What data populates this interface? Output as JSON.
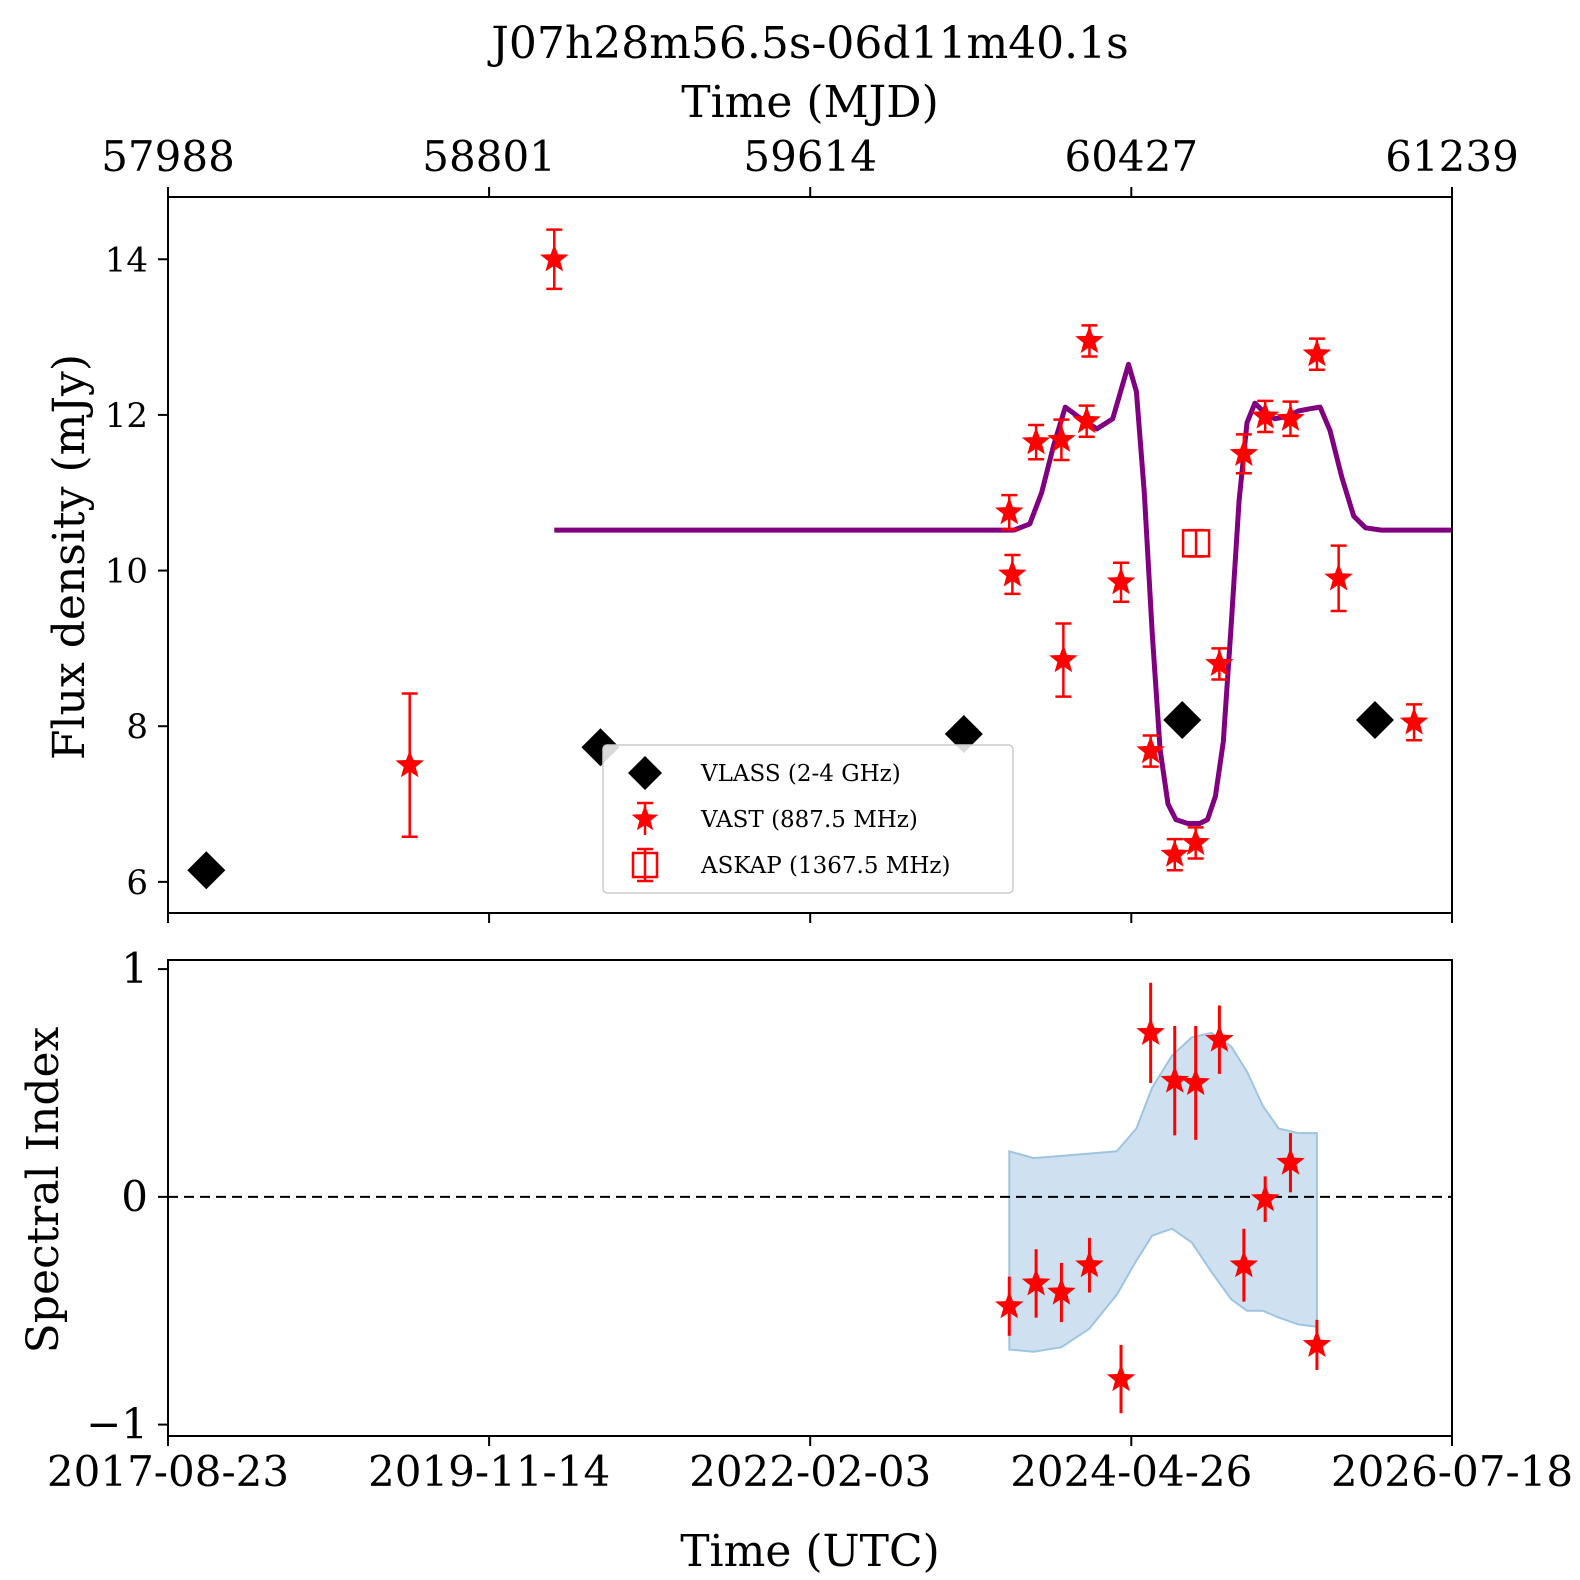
{
  "chart_data": [
    {
      "type": "scatter",
      "title": "J07h28m56.5s-06d11m40.1s",
      "top_xlabel": "Time (MJD)",
      "top_xticks": [
        "57988",
        "58801",
        "59614",
        "60427",
        "61239"
      ],
      "top_xtick_values": [
        57988,
        58801,
        59614,
        60427,
        61239
      ],
      "ylabel": "Flux density (mJy)",
      "yticks": [
        6,
        8,
        10,
        12,
        14
      ],
      "xlim_mjd": [
        57988,
        61239
      ],
      "ylim": [
        5.6,
        14.8
      ],
      "legend_position": "lower-center",
      "series": [
        {
          "name": "VLASS (2-4 GHz)",
          "marker": "diamond",
          "color": "#000000",
          "points": [
            {
              "x": 58085,
              "y": 6.15,
              "err": 0.1
            },
            {
              "x": 59083,
              "y": 7.73,
              "err": 0.1
            },
            {
              "x": 60003,
              "y": 7.9,
              "err": 0.1
            },
            {
              "x": 60556,
              "y": 8.08,
              "err": 0.1
            },
            {
              "x": 61044,
              "y": 8.08,
              "err": 0.1
            }
          ]
        },
        {
          "name": "VAST (887.5 MHz)",
          "marker": "star",
          "color": "#ff0000",
          "points": [
            {
              "x": 58600,
              "y": 7.5,
              "err": 0.92
            },
            {
              "x": 58966,
              "y": 14.0,
              "err": 0.38
            },
            {
              "x": 60118,
              "y": 10.75,
              "err": 0.22
            },
            {
              "x": 60126,
              "y": 9.95,
              "err": 0.25
            },
            {
              "x": 60255,
              "y": 8.85,
              "err": 0.47
            },
            {
              "x": 60186,
              "y": 11.65,
              "err": 0.22
            },
            {
              "x": 60250,
              "y": 11.68,
              "err": 0.26
            },
            {
              "x": 60314,
              "y": 11.92,
              "err": 0.2
            },
            {
              "x": 60321,
              "y": 12.95,
              "err": 0.2
            },
            {
              "x": 60401,
              "y": 9.85,
              "err": 0.25
            },
            {
              "x": 60476,
              "y": 7.68,
              "err": 0.2
            },
            {
              "x": 60537,
              "y": 6.35,
              "err": 0.2
            },
            {
              "x": 60590,
              "y": 6.5,
              "err": 0.2
            },
            {
              "x": 60650,
              "y": 8.8,
              "err": 0.2
            },
            {
              "x": 60712,
              "y": 11.5,
              "err": 0.25
            },
            {
              "x": 60766,
              "y": 11.98,
              "err": 0.2
            },
            {
              "x": 60830,
              "y": 11.95,
              "err": 0.22
            },
            {
              "x": 60897,
              "y": 12.78,
              "err": 0.2
            },
            {
              "x": 60952,
              "y": 9.9,
              "err": 0.42
            },
            {
              "x": 61143,
              "y": 8.05,
              "err": 0.23
            }
          ]
        },
        {
          "name": "ASKAP (1367.5 MHz)",
          "marker": "square-open",
          "color": "#ff0000",
          "points": [
            {
              "x": 60591,
              "y": 10.35,
              "err": 0.17
            }
          ]
        }
      ],
      "model": {
        "color": "#800080",
        "x": [
          58966,
          60130,
          60170,
          60200,
          60230,
          60260,
          60300,
          60340,
          60380,
          60400,
          60420,
          60440,
          60460,
          60480,
          60500,
          60520,
          60540,
          60570,
          60600,
          60620,
          60640,
          60660,
          60680,
          60700,
          60720,
          60740,
          60760,
          60790,
          60820,
          60850,
          60880,
          60905,
          60930,
          60960,
          60990,
          61020,
          61060,
          61239
        ],
        "y": [
          10.52,
          10.52,
          10.6,
          11.0,
          11.6,
          12.1,
          11.95,
          11.82,
          11.95,
          12.3,
          12.65,
          12.3,
          11.0,
          9.2,
          7.7,
          7.0,
          6.8,
          6.75,
          6.75,
          6.8,
          7.1,
          7.8,
          9.3,
          10.9,
          11.9,
          12.15,
          12.05,
          11.95,
          11.98,
          12.05,
          12.08,
          12.1,
          11.8,
          11.2,
          10.7,
          10.55,
          10.52,
          10.52
        ]
      }
    },
    {
      "type": "scatter",
      "xlabel": "Time (UTC)",
      "xticks": [
        "2017-08-23",
        "2019-11-14",
        "2022-02-03",
        "2024-04-26",
        "2026-07-18"
      ],
      "xtick_values": [
        57988,
        58801,
        59614,
        60427,
        61239
      ],
      "ylabel": "Spectral Index",
      "yticks": [
        "1",
        "0",
        "−1"
      ],
      "ytick_values": [
        1,
        0,
        -1
      ],
      "ylim": [
        -1.05,
        1.04
      ],
      "reference_line": {
        "y": 0,
        "style": "dashed"
      },
      "series": [
        {
          "name": "",
          "marker": "star",
          "color": "#ff0000",
          "points": [
            {
              "x": 60118,
              "y": -0.48,
              "err": 0.13
            },
            {
              "x": 60186,
              "y": -0.38,
              "err": 0.15
            },
            {
              "x": 60250,
              "y": -0.42,
              "err": 0.13
            },
            {
              "x": 60321,
              "y": -0.3,
              "err": 0.12
            },
            {
              "x": 60401,
              "y": -0.8,
              "err": 0.15
            },
            {
              "x": 60476,
              "y": 0.72,
              "err": 0.22
            },
            {
              "x": 60537,
              "y": 0.51,
              "err": 0.24
            },
            {
              "x": 60590,
              "y": 0.5,
              "err": 0.25
            },
            {
              "x": 60650,
              "y": 0.69,
              "err": 0.15
            },
            {
              "x": 60712,
              "y": -0.3,
              "err": 0.16
            },
            {
              "x": 60766,
              "y": -0.01,
              "err": 0.1
            },
            {
              "x": 60830,
              "y": 0.15,
              "err": 0.13
            },
            {
              "x": 60897,
              "y": -0.65,
              "err": 0.11
            }
          ]
        }
      ],
      "band": {
        "color": "#9fc4e1",
        "x": [
          60118,
          60180,
          60250,
          60320,
          60390,
          60440,
          60480,
          60530,
          60580,
          60630,
          60680,
          60720,
          60760,
          60800,
          60850,
          60897
        ],
        "upper": [
          0.2,
          0.17,
          0.18,
          0.19,
          0.2,
          0.3,
          0.48,
          0.62,
          0.7,
          0.72,
          0.66,
          0.55,
          0.4,
          0.3,
          0.28,
          0.28
        ],
        "lower": [
          -0.67,
          -0.68,
          -0.66,
          -0.58,
          -0.43,
          -0.28,
          -0.17,
          -0.14,
          -0.2,
          -0.33,
          -0.45,
          -0.5,
          -0.5,
          -0.53,
          -0.56,
          -0.57
        ]
      }
    }
  ]
}
